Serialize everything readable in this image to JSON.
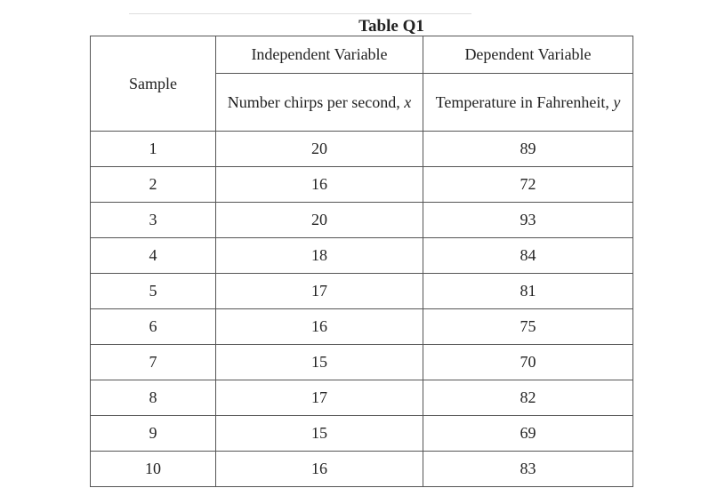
{
  "title": "Table Q1",
  "table": {
    "headers": {
      "sample": "Sample",
      "independent": "Independent Variable",
      "dependent": "Dependent Variable",
      "independent_desc": {
        "text": "Number chirps per second,",
        "variable": "x"
      },
      "dependent_desc": {
        "text": "Temperature in Fahrenheit,",
        "variable": "y"
      }
    },
    "rows": [
      [
        1,
        20,
        89
      ],
      [
        2,
        16,
        72
      ],
      [
        3,
        20,
        93
      ],
      [
        4,
        18,
        84
      ],
      [
        5,
        17,
        81
      ],
      [
        6,
        16,
        75
      ],
      [
        7,
        15,
        70
      ],
      [
        8,
        17,
        82
      ],
      [
        9,
        15,
        69
      ],
      [
        10,
        16,
        83
      ]
    ]
  }
}
